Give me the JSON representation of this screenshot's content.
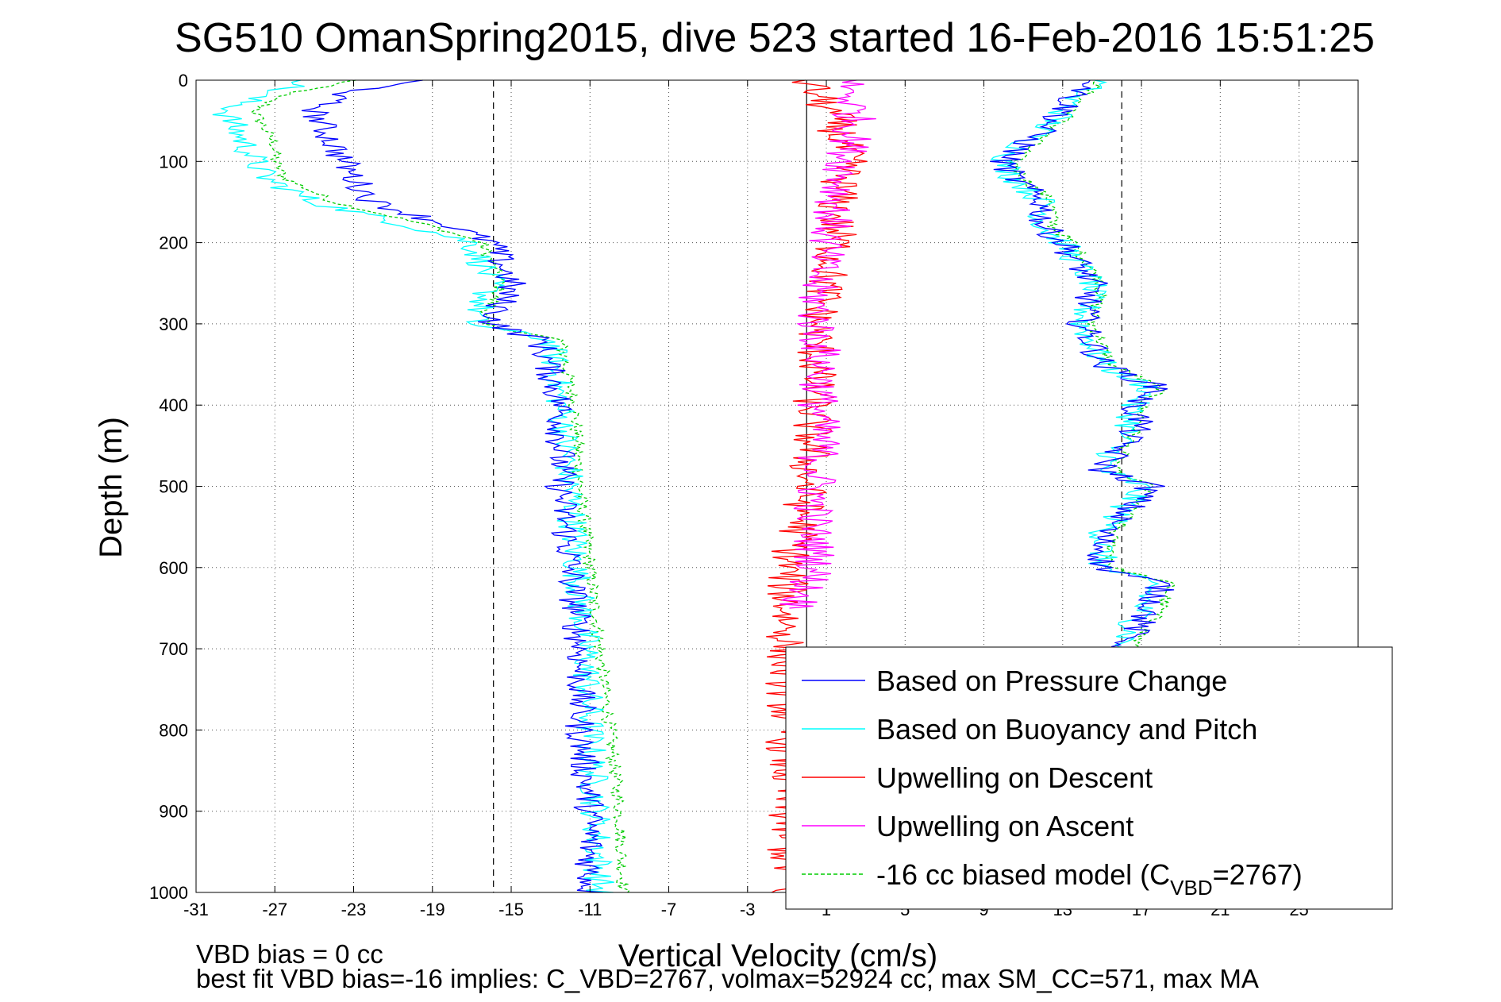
{
  "chart_data": {
    "type": "line",
    "title": "SG510 OmanSpring2015, dive 523 started 16-Feb-2016 15:51:25",
    "xlabel": "Vertical Velocity (cm/s)",
    "ylabel": "Depth (m)",
    "xlim": [
      -31,
      28
    ],
    "ylim": [
      0,
      1000
    ],
    "y_reversed": true,
    "grid": true,
    "x_ticks": [
      "-31",
      "-27",
      "-23",
      "-19",
      "-15",
      "-11",
      "-7",
      "-3",
      "1",
      "5",
      "9",
      "13",
      "17",
      "21",
      "25"
    ],
    "y_ticks": [
      "0",
      "100",
      "200",
      "300",
      "400",
      "500",
      "600",
      "700",
      "800",
      "900",
      "1000"
    ],
    "reference_lines": [
      {
        "x": -15.9,
        "style": "dashed"
      },
      {
        "x": 0,
        "style": "solid"
      },
      {
        "x": 16,
        "style": "dashed"
      }
    ],
    "legend": {
      "placement": "bottom-right",
      "entries": [
        {
          "label": "Based on Pressure Change",
          "color": "#0000ff"
        },
        {
          "label": "Based on Buoyancy and Pitch",
          "color": "#00ffff"
        },
        {
          "label": "Upwelling on Descent",
          "color": "#ff0000"
        },
        {
          "label": "Upwelling on Ascent",
          "color": "#ff00ff"
        },
        {
          "label_prefix": "-16 cc biased model (C",
          "label_sub": "VBD",
          "label_suffix": "=2767)",
          "color": "#00cc00",
          "dashed": true
        }
      ]
    },
    "series": [
      {
        "name": "Based on Pressure Change",
        "color": "#0000ff",
        "descent": {
          "depth": [
            0,
            20,
            40,
            60,
            80,
            100,
            120,
            150,
            180,
            200,
            250,
            300,
            320,
            400,
            500,
            600,
            700,
            800,
            900,
            1000
          ],
          "velocity": [
            -20,
            -24,
            -25,
            -24.5,
            -24,
            -23.5,
            -23,
            -22,
            -18,
            -16,
            -15,
            -16,
            -13.5,
            -12.5,
            -12.5,
            -12,
            -11.5,
            -11.5,
            -11,
            -11
          ]
        },
        "ascent": {
          "depth": [
            1000,
            950,
            900,
            800,
            700,
            650,
            620,
            600,
            560,
            500,
            480,
            420,
            400,
            380,
            350,
            300,
            250,
            200,
            180,
            150,
            120,
            100,
            80,
            60,
            40,
            20,
            0
          ],
          "velocity": [
            14,
            15.5,
            15.5,
            16,
            16,
            17.5,
            18,
            15,
            15,
            17.5,
            15,
            17,
            16.5,
            18,
            15,
            14,
            14.5,
            13,
            12,
            12,
            10.5,
            10,
            11,
            12,
            13,
            13.5,
            15
          ]
        }
      },
      {
        "name": "Based on Buoyancy and Pitch",
        "color": "#00ffff",
        "descent": {
          "depth": [
            0,
            20,
            40,
            60,
            80,
            100,
            120,
            150,
            180,
            200,
            250,
            300,
            320,
            400,
            500,
            600,
            700,
            800,
            900,
            1000
          ],
          "velocity": [
            -25,
            -28,
            -29.5,
            -29,
            -28.5,
            -28,
            -27.5,
            -25,
            -20,
            -17,
            -16,
            -17,
            -13,
            -12.5,
            -12,
            -11.7,
            -11.2,
            -11,
            -10.7,
            -10.5
          ]
        },
        "ascent": {
          "depth": [
            1000,
            950,
            900,
            800,
            700,
            650,
            620,
            600,
            560,
            500,
            480,
            420,
            400,
            380,
            350,
            300,
            250,
            200,
            180,
            150,
            120,
            100,
            80,
            60,
            40,
            20,
            0
          ],
          "velocity": [
            14.5,
            15.5,
            15.5,
            16,
            16,
            17,
            17.5,
            15,
            15,
            17,
            15,
            16.5,
            16.5,
            17.5,
            15,
            14,
            14.5,
            13,
            12,
            12,
            10.5,
            10,
            11,
            12,
            13,
            13.5,
            15
          ]
        }
      },
      {
        "name": "Upwelling on Descent",
        "color": "#ff0000",
        "depth": [
          0,
          50,
          100,
          150,
          200,
          250,
          300,
          350,
          400,
          450,
          500,
          550,
          600,
          650,
          700,
          800,
          900,
          1000
        ],
        "velocity": [
          0,
          1.5,
          2,
          1.5,
          1.5,
          1,
          0.5,
          0.5,
          0.3,
          0.2,
          0,
          -0.3,
          -1,
          -1,
          -1,
          -1,
          -1,
          -1
        ]
      },
      {
        "name": "Upwelling on Ascent",
        "color": "#ff00ff",
        "depth": [
          0,
          50,
          100,
          150,
          200,
          250,
          300,
          350,
          400,
          450,
          500,
          550,
          600,
          650
        ],
        "velocity": [
          2,
          2.5,
          2,
          1.5,
          1,
          0.5,
          0.5,
          0.8,
          0.6,
          0.7,
          0.5,
          0.3,
          0.5,
          -0.5
        ]
      },
      {
        "name": "-16 cc biased model (CVBD=2767)",
        "color": "#00cc00",
        "dashed": true,
        "descent": {
          "depth": [
            0,
            20,
            40,
            60,
            80,
            100,
            120,
            150,
            180,
            200,
            250,
            300,
            320,
            400,
            500,
            600,
            700,
            800,
            900,
            1000
          ],
          "velocity": [
            -23,
            -27,
            -28,
            -27.5,
            -27,
            -27,
            -26.5,
            -24,
            -19,
            -16.5,
            -15.5,
            -16.5,
            -12.5,
            -11.8,
            -11.5,
            -11,
            -10.5,
            -10,
            -9.5,
            -9.3
          ]
        },
        "ascent": {
          "depth": [
            1000,
            950,
            900,
            800,
            700,
            650,
            620,
            600,
            560,
            500,
            480,
            420,
            400,
            380,
            350,
            300,
            250,
            200,
            180,
            150,
            120,
            100,
            80,
            60,
            40,
            20,
            0
          ],
          "velocity": [
            15,
            16,
            16,
            16.2,
            16.5,
            18,
            18.5,
            15.5,
            15.5,
            17.5,
            15.5,
            17,
            17,
            18,
            15.5,
            14.5,
            15,
            13.5,
            12.5,
            12.5,
            11,
            10.5,
            11.5,
            12.5,
            13.5,
            14,
            15
          ]
        }
      }
    ]
  },
  "footer": {
    "line1": "VBD bias = 0 cc",
    "line2": "best fit VBD bias=-16 implies: C_VBD=2767, volmax=52924 cc, max SM_CC=571, max MA"
  }
}
